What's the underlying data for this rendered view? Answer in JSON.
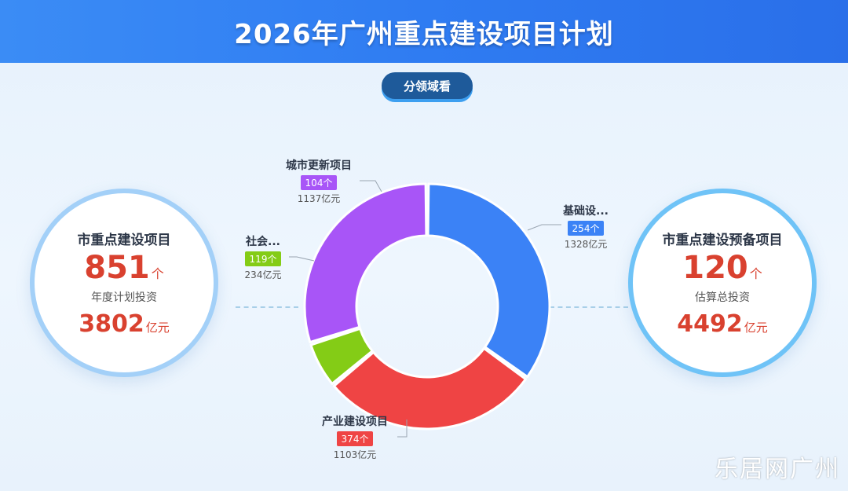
{
  "header": {
    "title": "2026年广州重点建设项目计划"
  },
  "filter": {
    "label": "分领域看"
  },
  "left_stat": {
    "title": "市重点建设项目",
    "count": "851",
    "count_unit": "个",
    "sub": "年度计划投资",
    "value": "3802",
    "value_unit": "亿元"
  },
  "right_stat": {
    "title": "市重点建设预备项目",
    "count": "120",
    "count_unit": "个",
    "sub": "估算总投资",
    "value": "4492",
    "value_unit": "亿元"
  },
  "chart_data": {
    "type": "pie",
    "title": "",
    "series": [
      {
        "name": "基础设...",
        "count_label": "254个",
        "investment_label": "1328亿元",
        "value": 1328,
        "color": "#3b82f6"
      },
      {
        "name": "产业建设项目",
        "count_label": "374个",
        "investment_label": "1103亿元",
        "value": 1103,
        "color": "#ef4444"
      },
      {
        "name": "社会...",
        "count_label": "119个",
        "investment_label": "234亿元",
        "value": 234,
        "color": "#84cc16"
      },
      {
        "name": "城市更新项目",
        "count_label": "104个",
        "investment_label": "1137亿元",
        "value": 1137,
        "color": "#a855f7"
      }
    ]
  },
  "watermark": "乐居网广州"
}
